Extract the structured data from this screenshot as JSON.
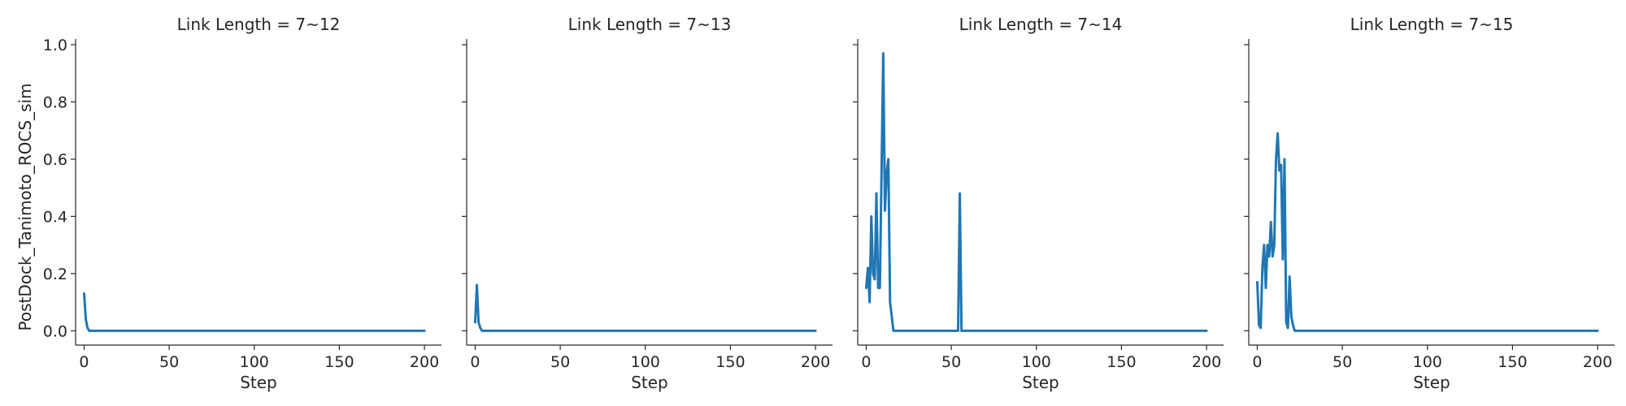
{
  "figure": {
    "ylabel": "PostDock_Tanimoto_ROCS_sim",
    "line_color": "#1f77b4"
  },
  "chart_data": [
    {
      "type": "line",
      "title": "Link Length = 7~12",
      "xlabel": "Step",
      "ylabel": "PostDock_Tanimoto_ROCS_sim",
      "xlim": [
        -5,
        210
      ],
      "ylim": [
        -0.05,
        1.02
      ],
      "xticks": [
        0,
        50,
        100,
        150,
        200
      ],
      "xtick_labels": [
        "0",
        "50",
        "100",
        "150",
        "200"
      ],
      "yticks": [
        0.0,
        0.2,
        0.4,
        0.6,
        0.8,
        1.0
      ],
      "ytick_labels": [
        "0.0",
        "0.2",
        "0.4",
        "0.6",
        "0.8",
        "1.0"
      ],
      "grid": false,
      "series": [
        {
          "x": [
            0,
            1,
            2,
            3,
            4,
            5,
            200
          ],
          "y": [
            0.13,
            0.04,
            0.01,
            0.0,
            0.0,
            0.0,
            0.0
          ]
        }
      ]
    },
    {
      "type": "line",
      "title": "Link Length = 7~13",
      "xlabel": "Step",
      "ylabel": "",
      "xlim": [
        -5,
        210
      ],
      "ylim": [
        -0.05,
        1.02
      ],
      "xticks": [
        0,
        50,
        100,
        150,
        200
      ],
      "xtick_labels": [
        "0",
        "50",
        "100",
        "150",
        "200"
      ],
      "yticks": [
        0.0,
        0.2,
        0.4,
        0.6,
        0.8,
        1.0
      ],
      "ytick_labels": [],
      "grid": false,
      "series": [
        {
          "x": [
            0,
            1,
            2,
            3,
            4,
            5,
            200
          ],
          "y": [
            0.03,
            0.16,
            0.03,
            0.01,
            0.0,
            0.0,
            0.0
          ]
        }
      ]
    },
    {
      "type": "line",
      "title": "Link Length = 7~14",
      "xlabel": "Step",
      "ylabel": "",
      "xlim": [
        -5,
        210
      ],
      "ylim": [
        -0.05,
        1.02
      ],
      "xticks": [
        0,
        50,
        100,
        150,
        200
      ],
      "xtick_labels": [
        "0",
        "50",
        "100",
        "150",
        "200"
      ],
      "yticks": [
        0.0,
        0.2,
        0.4,
        0.6,
        0.8,
        1.0
      ],
      "ytick_labels": [],
      "grid": false,
      "series": [
        {
          "x": [
            0,
            1,
            2,
            3,
            4,
            5,
            6,
            7,
            8,
            9,
            10,
            11,
            12,
            13,
            14,
            15,
            16,
            17,
            18,
            53,
            54,
            55,
            56,
            57,
            200
          ],
          "y": [
            0.15,
            0.22,
            0.1,
            0.4,
            0.2,
            0.18,
            0.48,
            0.15,
            0.15,
            0.55,
            0.97,
            0.42,
            0.55,
            0.6,
            0.1,
            0.05,
            0.0,
            0.0,
            0.0,
            0.0,
            0.0,
            0.48,
            0.0,
            0.0,
            0.0
          ]
        }
      ]
    },
    {
      "type": "line",
      "title": "Link Length = 7~15",
      "xlabel": "Step",
      "ylabel": "",
      "xlim": [
        -5,
        210
      ],
      "ylim": [
        -0.05,
        1.02
      ],
      "xticks": [
        0,
        50,
        100,
        150,
        200
      ],
      "xtick_labels": [
        "0",
        "50",
        "100",
        "150",
        "200"
      ],
      "yticks": [
        0.0,
        0.2,
        0.4,
        0.6,
        0.8,
        1.0
      ],
      "ytick_labels": [],
      "grid": false,
      "series": [
        {
          "x": [
            0,
            1,
            2,
            3,
            4,
            5,
            6,
            7,
            8,
            9,
            10,
            11,
            12,
            13,
            14,
            15,
            16,
            17,
            18,
            19,
            20,
            21,
            22,
            23,
            24,
            200
          ],
          "y": [
            0.17,
            0.02,
            0.01,
            0.22,
            0.3,
            0.15,
            0.3,
            0.26,
            0.38,
            0.26,
            0.3,
            0.6,
            0.69,
            0.56,
            0.58,
            0.25,
            0.6,
            0.03,
            0.01,
            0.19,
            0.05,
            0.02,
            0.0,
            0.0,
            0.0,
            0.0
          ]
        }
      ]
    }
  ]
}
